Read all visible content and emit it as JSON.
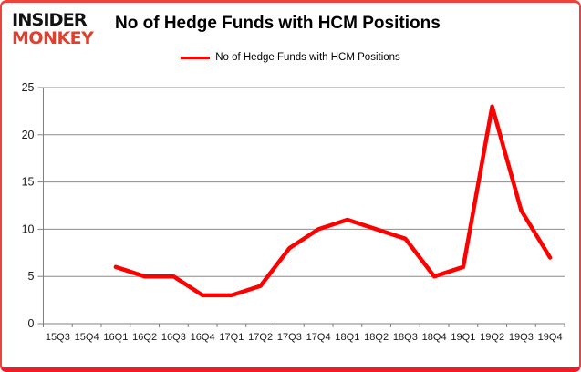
{
  "brand": {
    "line1": "INSIDER",
    "line2": "MONKEY",
    "line1_color": "#121212",
    "line2_color": "#e2402e"
  },
  "title": "No of Hedge Funds with HCM Positions",
  "legend": {
    "label": "No of Hedge Funds with HCM Positions",
    "color": "#ff0000"
  },
  "chart_data": {
    "type": "line",
    "title": "No of Hedge Funds with HCM Positions",
    "categories": [
      "15Q3",
      "15Q4",
      "16Q1",
      "16Q2",
      "16Q3",
      "16Q4",
      "17Q1",
      "17Q2",
      "17Q3",
      "17Q4",
      "18Q1",
      "18Q2",
      "18Q3",
      "18Q4",
      "19Q1",
      "19Q2",
      "19Q3",
      "19Q4"
    ],
    "series": [
      {
        "name": "No of Hedge Funds with HCM Positions",
        "color": "#ff0000",
        "values": [
          null,
          null,
          6,
          5,
          5,
          3,
          3,
          4,
          8,
          10,
          11,
          10,
          9,
          5,
          6,
          23,
          12,
          7
        ]
      }
    ],
    "xlabel": "",
    "ylabel": "",
    "ylim": [
      0,
      25
    ],
    "yticks": [
      0,
      5,
      10,
      15,
      20,
      25
    ],
    "grid": true,
    "legend_position": "top-center"
  },
  "colors": {
    "axis": "#808080",
    "grid": "#8c8c8c",
    "tick_text": "#1a1a1a",
    "frame_border": "#ee1c24",
    "background": "#ffffff"
  }
}
